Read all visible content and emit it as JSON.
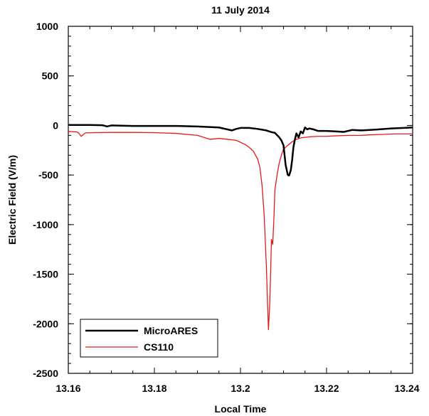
{
  "chart_data": {
    "type": "line",
    "title": "11 July 2014",
    "xlabel": "Local Time",
    "ylabel": "Electric Field (V/m)",
    "xlim": [
      13.16,
      13.24
    ],
    "ylim": [
      -2500,
      1000
    ],
    "xticks": [
      13.16,
      13.18,
      13.2,
      13.22,
      13.24
    ],
    "xtick_labels": [
      "13.16",
      "13.18",
      "13.2",
      "13.22",
      "13.24"
    ],
    "yticks": [
      1000,
      500,
      0,
      -500,
      -1000,
      -1500,
      -2000,
      -2500
    ],
    "ytick_labels": [
      "1000",
      "500",
      "0",
      "-500",
      "-1000",
      "-1500",
      "-2000",
      "-2500"
    ],
    "grid": false,
    "legend_position": "bottom-left",
    "series": [
      {
        "name": "MicroARES",
        "color": "#000000",
        "points": [
          [
            13.16,
            5
          ],
          [
            13.165,
            5
          ],
          [
            13.168,
            2
          ],
          [
            13.169,
            -10
          ],
          [
            13.17,
            0
          ],
          [
            13.175,
            -5
          ],
          [
            13.18,
            -5
          ],
          [
            13.185,
            -5
          ],
          [
            13.19,
            -10
          ],
          [
            13.195,
            -20
          ],
          [
            13.197,
            -40
          ],
          [
            13.198,
            -50
          ],
          [
            13.199,
            -35
          ],
          [
            13.2,
            -25
          ],
          [
            13.202,
            -25
          ],
          [
            13.204,
            -35
          ],
          [
            13.206,
            -50
          ],
          [
            13.207,
            -65
          ],
          [
            13.208,
            -75
          ],
          [
            13.209,
            -120
          ],
          [
            13.2095,
            -150
          ],
          [
            13.21,
            -200
          ],
          [
            13.2105,
            -400
          ],
          [
            13.211,
            -500
          ],
          [
            13.2113,
            -505
          ],
          [
            13.2117,
            -450
          ],
          [
            13.212,
            -350
          ],
          [
            13.2123,
            -220
          ],
          [
            13.2126,
            -150
          ],
          [
            13.213,
            -80
          ],
          [
            13.2135,
            -120
          ],
          [
            13.214,
            -60
          ],
          [
            13.2145,
            -80
          ],
          [
            13.215,
            -20
          ],
          [
            13.2155,
            -40
          ],
          [
            13.216,
            -30
          ],
          [
            13.217,
            -40
          ],
          [
            13.218,
            -55
          ],
          [
            13.22,
            -55
          ],
          [
            13.222,
            -60
          ],
          [
            13.224,
            -65
          ],
          [
            13.226,
            -45
          ],
          [
            13.228,
            -50
          ],
          [
            13.23,
            -45
          ],
          [
            13.232,
            -40
          ],
          [
            13.235,
            -30
          ],
          [
            13.238,
            -25
          ],
          [
            13.24,
            -20
          ]
        ]
      },
      {
        "name": "CS110",
        "color": "#e31a1c",
        "points": [
          [
            13.16,
            -60
          ],
          [
            13.162,
            -65
          ],
          [
            13.1625,
            -80
          ],
          [
            13.163,
            -110
          ],
          [
            13.1635,
            -90
          ],
          [
            13.164,
            -75
          ],
          [
            13.166,
            -72
          ],
          [
            13.17,
            -70
          ],
          [
            13.175,
            -70
          ],
          [
            13.18,
            -72
          ],
          [
            13.185,
            -80
          ],
          [
            13.19,
            -100
          ],
          [
            13.193,
            -140
          ],
          [
            13.195,
            -130
          ],
          [
            13.197,
            -140
          ],
          [
            13.199,
            -150
          ],
          [
            13.2,
            -170
          ],
          [
            13.201,
            -190
          ],
          [
            13.202,
            -220
          ],
          [
            13.203,
            -260
          ],
          [
            13.204,
            -340
          ],
          [
            13.2045,
            -420
          ],
          [
            13.205,
            -600
          ],
          [
            13.2055,
            -900
          ],
          [
            13.206,
            -1400
          ],
          [
            13.2063,
            -1800
          ],
          [
            13.2065,
            -2060
          ],
          [
            13.2068,
            -1800
          ],
          [
            13.207,
            -1500
          ],
          [
            13.2072,
            -1150
          ],
          [
            13.2075,
            -1200
          ],
          [
            13.2078,
            -900
          ],
          [
            13.208,
            -650
          ],
          [
            13.2085,
            -500
          ],
          [
            13.209,
            -380
          ],
          [
            13.2095,
            -300
          ],
          [
            13.21,
            -240
          ],
          [
            13.211,
            -200
          ],
          [
            13.212,
            -165
          ],
          [
            13.213,
            -140
          ],
          [
            13.214,
            -125
          ],
          [
            13.216,
            -115
          ],
          [
            13.218,
            -110
          ],
          [
            13.22,
            -110
          ],
          [
            13.222,
            -105
          ],
          [
            13.225,
            -100
          ],
          [
            13.228,
            -100
          ],
          [
            13.23,
            -95
          ],
          [
            13.233,
            -90
          ],
          [
            13.236,
            -85
          ],
          [
            13.24,
            -85
          ]
        ]
      }
    ]
  }
}
